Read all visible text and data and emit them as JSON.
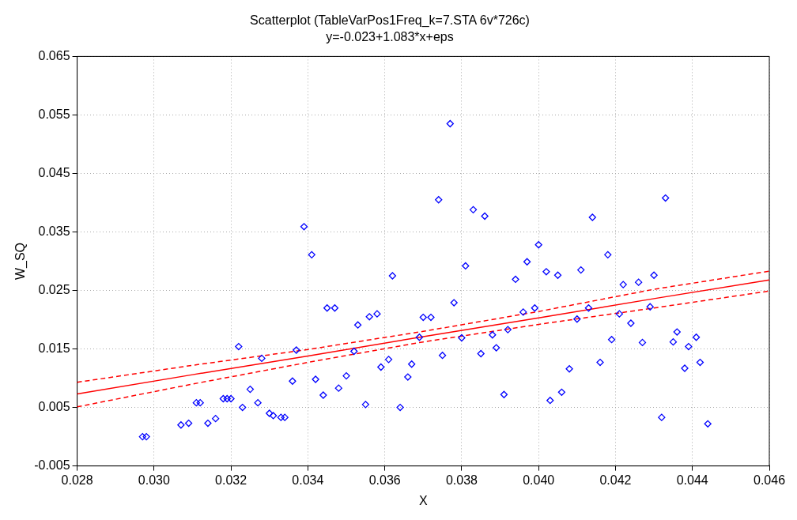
{
  "chart_data": {
    "type": "scatter",
    "title": "Scatterplot (TableVarPos1Freq_k=7.STA 6v*726c)",
    "subtitle": "y=-0.023+1.083*x+eps",
    "xlabel": "X",
    "ylabel": "W_SQ",
    "xlim": [
      0.028,
      0.046
    ],
    "xticks": [
      {
        "value": 0.028,
        "label": "0.028"
      },
      {
        "value": 0.03,
        "label": "0.030"
      },
      {
        "value": 0.032,
        "label": "0.032"
      },
      {
        "value": 0.034,
        "label": "0.034"
      },
      {
        "value": 0.036,
        "label": "0.036"
      },
      {
        "value": 0.038,
        "label": "0.038"
      },
      {
        "value": 0.04,
        "label": "0.040"
      },
      {
        "value": 0.042,
        "label": "0.042"
      },
      {
        "value": 0.044,
        "label": "0.044"
      },
      {
        "value": 0.046,
        "label": "0.046"
      }
    ],
    "ylim": [
      -0.005,
      0.065
    ],
    "yticks": [
      -0.005,
      0.005,
      0.015,
      0.025,
      0.035,
      0.045,
      0.055,
      0.065
    ],
    "grid": true,
    "legend": false,
    "series": [
      {
        "color": "#0000ff",
        "marker": "diamond",
        "x": [
          0.0297,
          0.0298,
          0.0307,
          0.0309,
          0.0311,
          0.0312,
          0.0314,
          0.0316,
          0.0318,
          0.0319,
          0.032,
          0.0322,
          0.0323,
          0.0325,
          0.0327,
          0.0328,
          0.033,
          0.0331,
          0.0333,
          0.0334,
          0.0336,
          0.0337,
          0.0339,
          0.0341,
          0.0342,
          0.0344,
          0.0345,
          0.0347,
          0.0348,
          0.035,
          0.0352,
          0.0353,
          0.0355,
          0.0356,
          0.0358,
          0.0359,
          0.0361,
          0.0362,
          0.0364,
          0.0366,
          0.0367,
          0.0369,
          0.037,
          0.0372,
          0.0374,
          0.0375,
          0.0377,
          0.0378,
          0.038,
          0.0381,
          0.0383,
          0.0385,
          0.0386,
          0.0388,
          0.0389,
          0.0391,
          0.0392,
          0.0394,
          0.0396,
          0.0397,
          0.0399,
          0.04,
          0.0402,
          0.0403,
          0.0405,
          0.0406,
          0.0408,
          0.041,
          0.0411,
          0.0413,
          0.0414,
          0.0416,
          0.0418,
          0.0419,
          0.0421,
          0.0422,
          0.0424,
          0.0426,
          0.0427,
          0.0429,
          0.043,
          0.0432,
          0.0433,
          0.0435,
          0.0436,
          0.0438,
          0.0439,
          0.0441,
          0.0442,
          0.0444
        ],
        "values": [
          0.0,
          0.0,
          0.002,
          0.0023,
          0.0058,
          0.0058,
          0.0023,
          0.0031,
          0.0065,
          0.0065,
          0.0065,
          0.0154,
          0.005,
          0.0081,
          0.0058,
          0.0134,
          0.004,
          0.0036,
          0.0033,
          0.0033,
          0.0095,
          0.0148,
          0.0359,
          0.0311,
          0.0098,
          0.0071,
          0.022,
          0.022,
          0.0083,
          0.0104,
          0.0146,
          0.0191,
          0.0055,
          0.0205,
          0.021,
          0.0119,
          0.0132,
          0.0275,
          0.005,
          0.0102,
          0.0124,
          0.017,
          0.0204,
          0.0204,
          0.0405,
          0.0139,
          0.0535,
          0.0229,
          0.0169,
          0.0292,
          0.0388,
          0.0142,
          0.0377,
          0.0174,
          0.0152,
          0.0072,
          0.0183,
          0.0269,
          0.0213,
          0.0299,
          0.022,
          0.0328,
          0.0282,
          0.0062,
          0.0276,
          0.0076,
          0.0116,
          0.0201,
          0.0285,
          0.022,
          0.0375,
          0.0127,
          0.0311,
          0.0166,
          0.021,
          0.026,
          0.0194,
          0.0264,
          0.0161,
          0.0222,
          0.0276,
          0.0033,
          0.0408,
          0.0162,
          0.0179,
          0.0117,
          0.0154,
          0.017,
          0.0127,
          0.0022
        ]
      },
      {
        "type": "line",
        "color": "#ff0000",
        "marker": "none",
        "line_style": "solid",
        "x": [
          0.028,
          0.031,
          0.034,
          0.037,
          0.04,
          0.043,
          0.046
        ],
        "values": [
          0.0073,
          0.0106,
          0.0138,
          0.0171,
          0.0203,
          0.0236,
          0.0268
        ]
      },
      {
        "type": "line",
        "color": "#ff0000",
        "marker": "none",
        "line_style": "dashed",
        "x": [
          0.028,
          0.031,
          0.034,
          0.037,
          0.04,
          0.043,
          0.046
        ],
        "values": [
          0.0051,
          0.009,
          0.0127,
          0.0162,
          0.0192,
          0.022,
          0.0249
        ]
      },
      {
        "type": "line",
        "color": "#ff0000",
        "marker": "none",
        "line_style": "dashed",
        "x": [
          0.028,
          0.031,
          0.034,
          0.037,
          0.04,
          0.043,
          0.046
        ],
        "values": [
          0.0093,
          0.0122,
          0.0149,
          0.018,
          0.0214,
          0.0252,
          0.0283
        ]
      }
    ]
  }
}
